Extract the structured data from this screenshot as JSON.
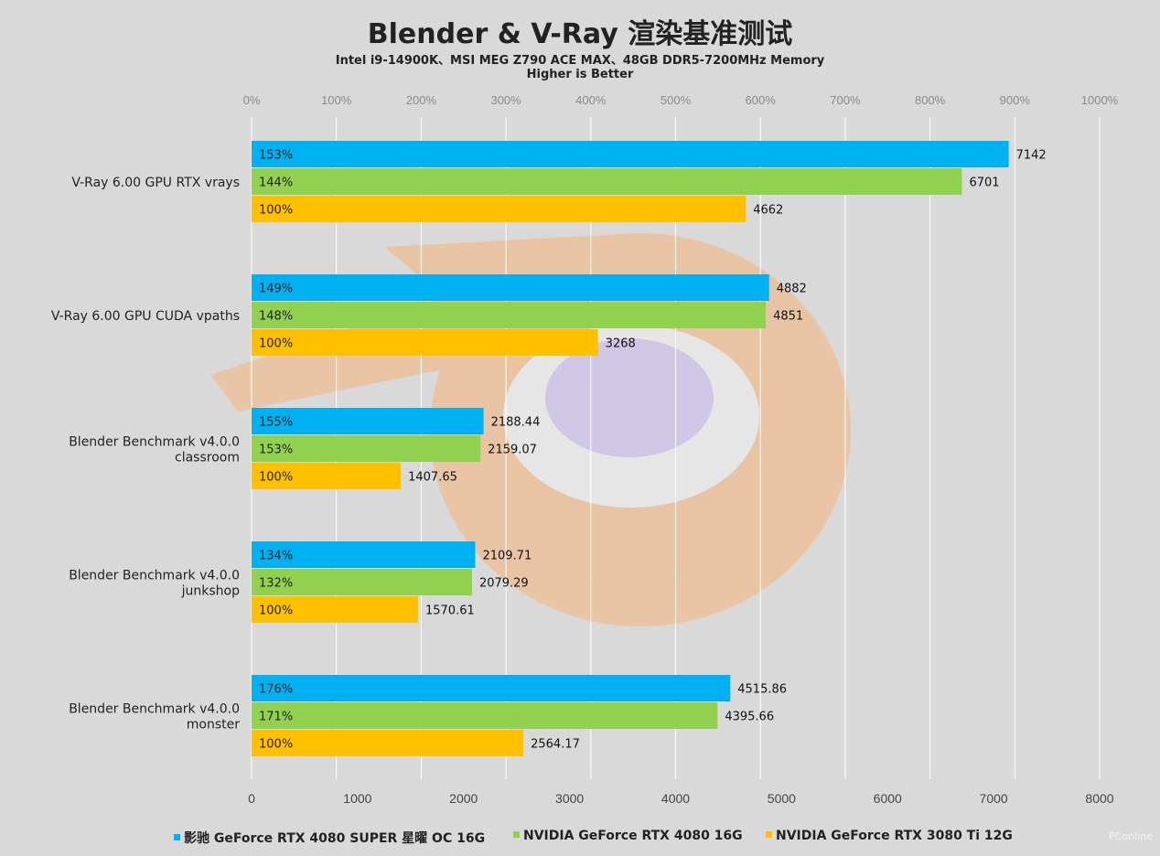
{
  "chart_data": {
    "type": "bar",
    "orientation": "horizontal",
    "title": "Blender & V-Ray 渲染基准测试",
    "subtitle_lines": [
      "Intel i9-14900K、MSI MEG Z790 ACE MAX、48GB DDR5-7200MHz Memory",
      "Higher is Better"
    ],
    "categories": [
      [
        "V-Ray 6.00 GPU RTX vrays"
      ],
      [
        "V-Ray 6.00 GPU CUDA vpaths"
      ],
      [
        "Blender Benchmark v4.0.0",
        "classroom"
      ],
      [
        "Blender Benchmark v4.0.0",
        "junkshop"
      ],
      [
        "Blender Benchmark v4.0.0",
        "monster"
      ]
    ],
    "series": [
      {
        "name": "影驰 GeForce RTX 4080 SUPER 星曜 OC 16G",
        "color": "#00b0f0",
        "values": [
          7142,
          4882,
          2188.44,
          2109.71,
          4515.86
        ],
        "value_labels": [
          "7142",
          "4882",
          "2188.44",
          "2109.71",
          "4515.86"
        ],
        "percents": [
          "153%",
          "149%",
          "155%",
          "134%",
          "176%"
        ]
      },
      {
        "name": "NVIDIA GeForce RTX 4080 16G",
        "color": "#92d050",
        "values": [
          6701,
          4851,
          2159.07,
          2079.29,
          4395.66
        ],
        "value_labels": [
          "6701",
          "4851",
          "2159.07",
          "2079.29",
          "4395.66"
        ],
        "percents": [
          "144%",
          "148%",
          "153%",
          "132%",
          "171%"
        ]
      },
      {
        "name": "NVIDIA GeForce RTX 3080 Ti 12G",
        "color": "#ffc000",
        "values": [
          4662,
          3268,
          1407.65,
          1570.61,
          2564.17
        ],
        "value_labels": [
          "4662",
          "3268",
          "1407.65",
          "1570.61",
          "2564.17"
        ],
        "percents": [
          "100%",
          "100%",
          "100%",
          "100%",
          "100%"
        ]
      }
    ],
    "x_axis": {
      "range": [
        0,
        8000
      ],
      "ticks": [
        "0",
        "1000",
        "2000",
        "3000",
        "4000",
        "5000",
        "6000",
        "7000",
        "8000"
      ]
    },
    "x2_axis": {
      "range": [
        0,
        1000
      ],
      "ticks": [
        "0%",
        "100%",
        "200%",
        "300%",
        "400%",
        "500%",
        "600%",
        "700%",
        "800%",
        "900%",
        "1000%"
      ]
    },
    "grid": true,
    "legend": "bottom"
  },
  "watermark": "PConline"
}
